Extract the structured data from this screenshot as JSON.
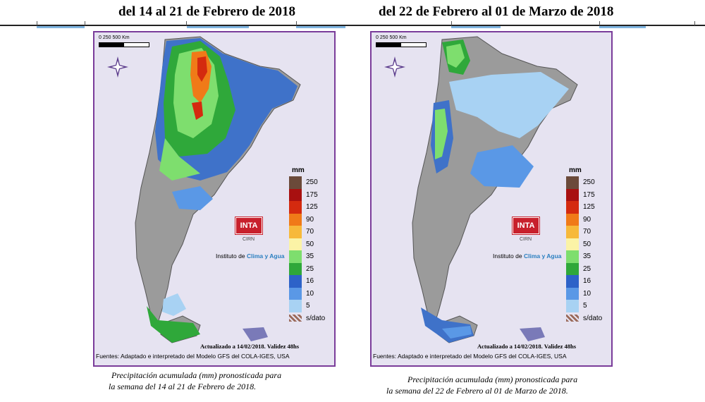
{
  "headers": {
    "left": "del 14 al 21 de Febrero de 2018",
    "right": "del 22 de Febrero al 01 de Marzo de 2018"
  },
  "map": {
    "scale_label": "0      250      500 Km",
    "legend_unit": "mm",
    "legend": [
      {
        "label": "250",
        "color": "#6b4a3a"
      },
      {
        "label": "175",
        "color": "#a81010"
      },
      {
        "label": "125",
        "color": "#d42a0f"
      },
      {
        "label": "90",
        "color": "#f07a18"
      },
      {
        "label": "70",
        "color": "#f7b93a"
      },
      {
        "label": "50",
        "color": "#fbf3a6"
      },
      {
        "label": "35",
        "color": "#7ede6e"
      },
      {
        "label": "25",
        "color": "#2fa83a"
      },
      {
        "label": "16",
        "color": "#2d62c8"
      },
      {
        "label": "10",
        "color": "#5a98e6"
      },
      {
        "label": "5",
        "color": "#a8d2f3"
      },
      {
        "label": "s/dato",
        "color": "#9a6a5a"
      }
    ],
    "logo": "INTA",
    "cirn": "CIRN",
    "institute_prefix": "Instituto de",
    "institute_name": "Clima y Agua",
    "updated": "Actualizado a 14/02/2018. Validez 48hs",
    "source": "Fuentes: Adaptado e interpretado del Modelo GFS del COLA-IGES, USA"
  },
  "captions": {
    "left_line1": "Precipitación acumulada (mm) pronosticada para",
    "left_line2": "la semana del 14 al 21 de Febrero de 2018.",
    "right_line1": "Precipitación acumulada (mm) pronosticada para",
    "right_line2": "la semana del 22 de Febrero al 01 de Marzo de 2018."
  }
}
